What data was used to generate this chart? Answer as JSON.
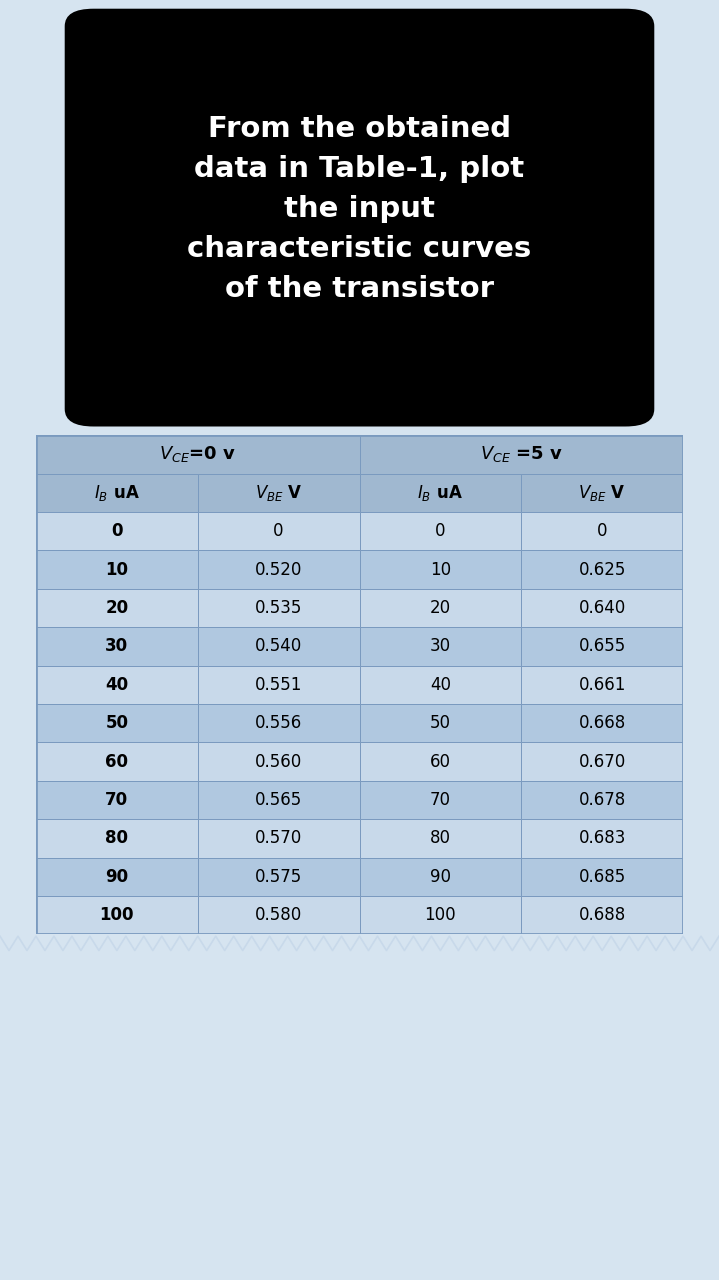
{
  "title_lines": [
    "From the obtained",
    "data in Table-1, plot",
    "the input",
    "characteristic curves",
    "of the transistor"
  ],
  "background_color": "#d6e4f0",
  "title_bg_color": "#000000",
  "title_text_color": "#ffffff",
  "vce0_IB": [
    0,
    10,
    20,
    30,
    40,
    50,
    60,
    70,
    80,
    90,
    100
  ],
  "vce0_VBE": [
    0,
    0.52,
    0.535,
    0.54,
    0.551,
    0.556,
    0.56,
    0.565,
    0.57,
    0.575,
    0.58
  ],
  "vce5_IB": [
    0,
    10,
    20,
    30,
    40,
    50,
    60,
    70,
    80,
    90,
    100
  ],
  "vce5_VBE": [
    0,
    0.625,
    0.64,
    0.655,
    0.661,
    0.668,
    0.67,
    0.678,
    0.683,
    0.685,
    0.688
  ],
  "header_bg": "#a0b8d0",
  "light_row": "#c8d9ea",
  "dark_row": "#b0c8e0",
  "border_col": "#7a9abf",
  "stripe_colors": [
    "#c8d9ea",
    "#b0c8e0"
  ]
}
